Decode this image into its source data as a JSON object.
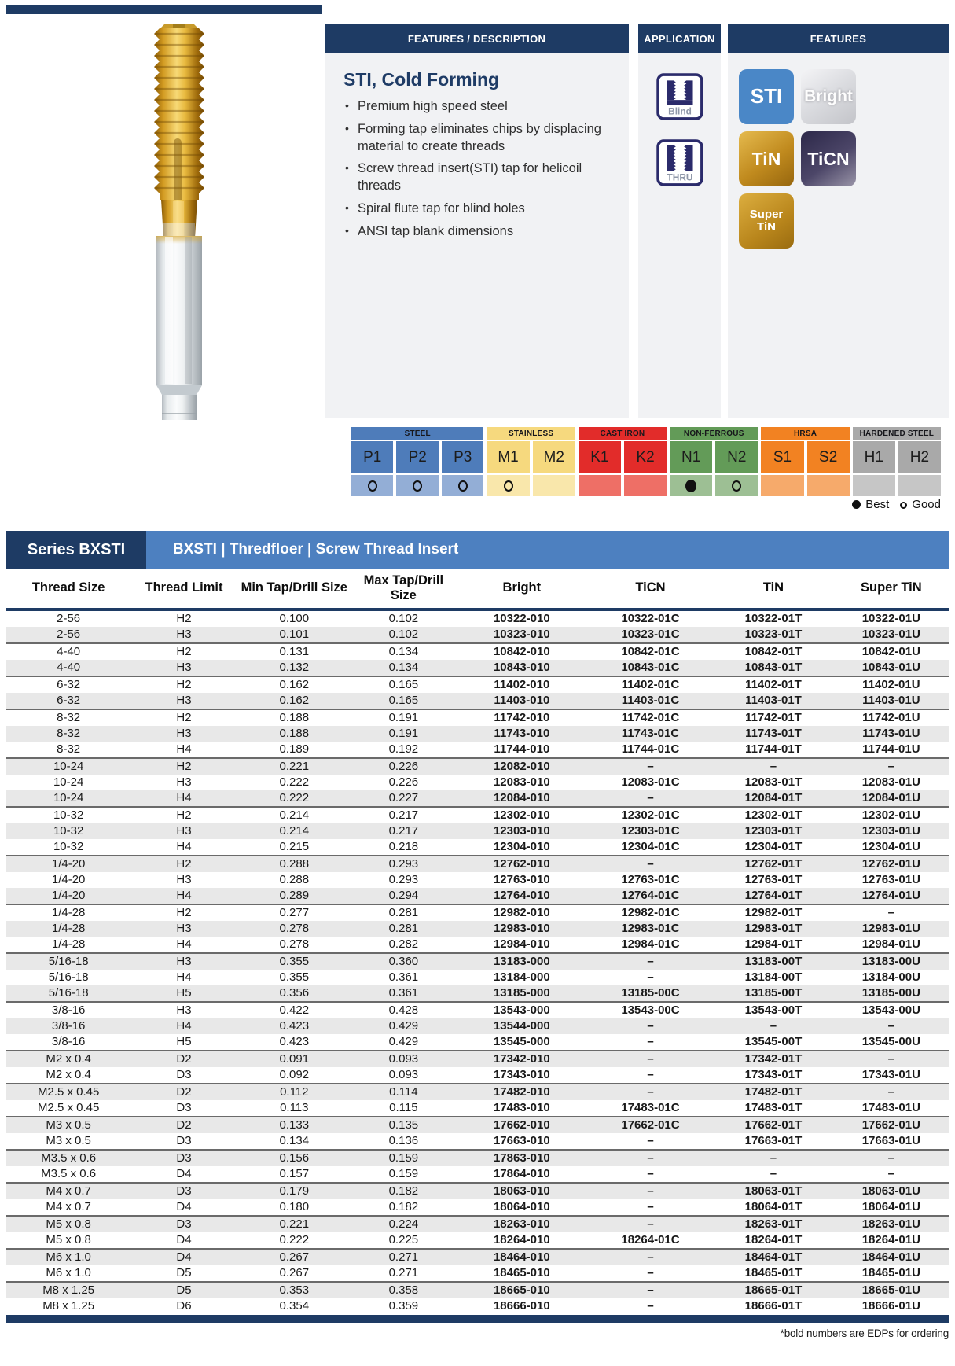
{
  "panels": {
    "description": {
      "header": "FEATURES / DESCRIPTION",
      "title": "STI, Cold Forming",
      "bullets": [
        "Premium high speed steel",
        "Forming tap eliminates chips by displacing material to create threads",
        "Screw thread insert(STI) tap for helicoil threads",
        "Spiral flute tap for blind holes",
        "ANSI tap blank dimensions"
      ]
    },
    "application": {
      "header": "APPLICATION",
      "items": [
        {
          "label": "Blind",
          "icon": "blind-hole-icon"
        },
        {
          "label": "THRU",
          "icon": "through-hole-icon"
        }
      ]
    },
    "features": {
      "header": "FEATURES",
      "badges": [
        {
          "label": "STI",
          "style": "sti",
          "color": "#4a87c7"
        },
        {
          "label": "Bright",
          "style": "bright",
          "color": "#d9dade"
        },
        {
          "label": "TiN",
          "style": "tin",
          "color": "#c08a1e"
        },
        {
          "label": "TiCN",
          "style": "ticn",
          "color": "#4c4668"
        },
        {
          "label": "Super TiN",
          "style": "supertin",
          "color": "#b9861c"
        }
      ]
    }
  },
  "materials": {
    "groups": [
      {
        "name": "STEEL",
        "color": "#4e7cba",
        "light": "#93aed6",
        "cells": [
          {
            "code": "P1",
            "rating": "good"
          },
          {
            "code": "P2",
            "rating": "good"
          },
          {
            "code": "P3",
            "rating": "good"
          }
        ]
      },
      {
        "name": "STAINLESS",
        "color": "#f6d97e",
        "light": "#f9e7ab",
        "cells": [
          {
            "code": "M1",
            "rating": "good"
          },
          {
            "code": "M2",
            "rating": "none"
          }
        ]
      },
      {
        "name": "CAST IRON",
        "color": "#e22c2a",
        "light": "#ee6f66",
        "cells": [
          {
            "code": "K1",
            "rating": "none"
          },
          {
            "code": "K2",
            "rating": "none"
          }
        ]
      },
      {
        "name": "NON-FERROUS",
        "color": "#639b58",
        "light": "#9dbf94",
        "cells": [
          {
            "code": "N1",
            "rating": "best"
          },
          {
            "code": "N2",
            "rating": "good"
          }
        ]
      },
      {
        "name": "HRSA",
        "color": "#f28222",
        "light": "#f6aa6b",
        "cells": [
          {
            "code": "S1",
            "rating": "none"
          },
          {
            "code": "S2",
            "rating": "none"
          }
        ]
      },
      {
        "name": "HARDENED STEEL",
        "color": "#a9a9a9",
        "light": "#c6c6c6",
        "cells": [
          {
            "code": "H1",
            "rating": "none"
          },
          {
            "code": "H2",
            "rating": "none"
          }
        ]
      }
    ],
    "legend": {
      "best": "Best",
      "good": "Good"
    }
  },
  "table": {
    "series_label": "Series BXSTI",
    "title": "BXSTI | Thredfloer | Screw Thread Insert",
    "columns": [
      "Thread Size",
      "Thread Limit",
      "Min Tap/Drill Size",
      "Max Tap/Drill Size",
      "Bright",
      "TiCN",
      "TiN",
      "Super TiN"
    ],
    "groups": [
      [
        [
          "2-56",
          "H2",
          "0.100",
          "0.102",
          "10322-010",
          "10322-01C",
          "10322-01T",
          "10322-01U"
        ],
        [
          "2-56",
          "H3",
          "0.101",
          "0.102",
          "10323-010",
          "10323-01C",
          "10323-01T",
          "10323-01U"
        ]
      ],
      [
        [
          "4-40",
          "H2",
          "0.131",
          "0.134",
          "10842-010",
          "10842-01C",
          "10842-01T",
          "10842-01U"
        ],
        [
          "4-40",
          "H3",
          "0.132",
          "0.134",
          "10843-010",
          "10843-01C",
          "10843-01T",
          "10843-01U"
        ]
      ],
      [
        [
          "6-32",
          "H2",
          "0.162",
          "0.165",
          "11402-010",
          "11402-01C",
          "11402-01T",
          "11402-01U"
        ],
        [
          "6-32",
          "H3",
          "0.162",
          "0.165",
          "11403-010",
          "11403-01C",
          "11403-01T",
          "11403-01U"
        ]
      ],
      [
        [
          "8-32",
          "H2",
          "0.188",
          "0.191",
          "11742-010",
          "11742-01C",
          "11742-01T",
          "11742-01U"
        ],
        [
          "8-32",
          "H3",
          "0.188",
          "0.191",
          "11743-010",
          "11743-01C",
          "11743-01T",
          "11743-01U"
        ],
        [
          "8-32",
          "H4",
          "0.189",
          "0.192",
          "11744-010",
          "11744-01C",
          "11744-01T",
          "11744-01U"
        ]
      ],
      [
        [
          "10-24",
          "H2",
          "0.221",
          "0.226",
          "12082-010",
          "–",
          "–",
          "–"
        ],
        [
          "10-24",
          "H3",
          "0.222",
          "0.226",
          "12083-010",
          "12083-01C",
          "12083-01T",
          "12083-01U"
        ],
        [
          "10-24",
          "H4",
          "0.222",
          "0.227",
          "12084-010",
          "–",
          "12084-01T",
          "12084-01U"
        ]
      ],
      [
        [
          "10-32",
          "H2",
          "0.214",
          "0.217",
          "12302-010",
          "12302-01C",
          "12302-01T",
          "12302-01U"
        ],
        [
          "10-32",
          "H3",
          "0.214",
          "0.217",
          "12303-010",
          "12303-01C",
          "12303-01T",
          "12303-01U"
        ],
        [
          "10-32",
          "H4",
          "0.215",
          "0.218",
          "12304-010",
          "12304-01C",
          "12304-01T",
          "12304-01U"
        ]
      ],
      [
        [
          "1/4-20",
          "H2",
          "0.288",
          "0.293",
          "12762-010",
          "–",
          "12762-01T",
          "12762-01U"
        ],
        [
          "1/4-20",
          "H3",
          "0.288",
          "0.293",
          "12763-010",
          "12763-01C",
          "12763-01T",
          "12763-01U"
        ],
        [
          "1/4-20",
          "H4",
          "0.289",
          "0.294",
          "12764-010",
          "12764-01C",
          "12764-01T",
          "12764-01U"
        ]
      ],
      [
        [
          "1/4-28",
          "H2",
          "0.277",
          "0.281",
          "12982-010",
          "12982-01C",
          "12982-01T",
          "–"
        ],
        [
          "1/4-28",
          "H3",
          "0.278",
          "0.281",
          "12983-010",
          "12983-01C",
          "12983-01T",
          "12983-01U"
        ],
        [
          "1/4-28",
          "H4",
          "0.278",
          "0.282",
          "12984-010",
          "12984-01C",
          "12984-01T",
          "12984-01U"
        ]
      ],
      [
        [
          "5/16-18",
          "H3",
          "0.355",
          "0.360",
          "13183-000",
          "–",
          "13183-00T",
          "13183-00U"
        ],
        [
          "5/16-18",
          "H4",
          "0.355",
          "0.361",
          "13184-000",
          "–",
          "13184-00T",
          "13184-00U"
        ],
        [
          "5/16-18",
          "H5",
          "0.356",
          "0.361",
          "13185-000",
          "13185-00C",
          "13185-00T",
          "13185-00U"
        ]
      ],
      [
        [
          "3/8-16",
          "H3",
          "0.422",
          "0.428",
          "13543-000",
          "13543-00C",
          "13543-00T",
          "13543-00U"
        ],
        [
          "3/8-16",
          "H4",
          "0.423",
          "0.429",
          "13544-000",
          "–",
          "–",
          "–"
        ],
        [
          "3/8-16",
          "H5",
          "0.423",
          "0.429",
          "13545-000",
          "–",
          "13545-00T",
          "13545-00U"
        ]
      ],
      [
        [
          "M2 x 0.4",
          "D2",
          "0.091",
          "0.093",
          "17342-010",
          "–",
          "17342-01T",
          "–"
        ],
        [
          "M2 x 0.4",
          "D3",
          "0.092",
          "0.093",
          "17343-010",
          "–",
          "17343-01T",
          "17343-01U"
        ]
      ],
      [
        [
          "M2.5 x 0.45",
          "D2",
          "0.112",
          "0.114",
          "17482-010",
          "–",
          "17482-01T",
          "–"
        ],
        [
          "M2.5 x 0.45",
          "D3",
          "0.113",
          "0.115",
          "17483-010",
          "17483-01C",
          "17483-01T",
          "17483-01U"
        ]
      ],
      [
        [
          "M3 x 0.5",
          "D2",
          "0.133",
          "0.135",
          "17662-010",
          "17662-01C",
          "17662-01T",
          "17662-01U"
        ],
        [
          "M3 x 0.5",
          "D3",
          "0.134",
          "0.136",
          "17663-010",
          "–",
          "17663-01T",
          "17663-01U"
        ]
      ],
      [
        [
          "M3.5 x 0.6",
          "D3",
          "0.156",
          "0.159",
          "17863-010",
          "–",
          "–",
          "–"
        ],
        [
          "M3.5 x 0.6",
          "D4",
          "0.157",
          "0.159",
          "17864-010",
          "–",
          "–",
          "–"
        ]
      ],
      [
        [
          "M4 x 0.7",
          "D3",
          "0.179",
          "0.182",
          "18063-010",
          "–",
          "18063-01T",
          "18063-01U"
        ],
        [
          "M4 x 0.7",
          "D4",
          "0.180",
          "0.182",
          "18064-010",
          "–",
          "18064-01T",
          "18064-01U"
        ]
      ],
      [
        [
          "M5 x 0.8",
          "D3",
          "0.221",
          "0.224",
          "18263-010",
          "–",
          "18263-01T",
          "18263-01U"
        ],
        [
          "M5 x 0.8",
          "D4",
          "0.222",
          "0.225",
          "18264-010",
          "18264-01C",
          "18264-01T",
          "18264-01U"
        ]
      ],
      [
        [
          "M6 x 1.0",
          "D4",
          "0.267",
          "0.271",
          "18464-010",
          "–",
          "18464-01T",
          "18464-01U"
        ],
        [
          "M6 x 1.0",
          "D5",
          "0.267",
          "0.271",
          "18465-010",
          "–",
          "18465-01T",
          "18465-01U"
        ]
      ],
      [
        [
          "M8 x 1.25",
          "D5",
          "0.353",
          "0.358",
          "18665-010",
          "–",
          "18665-01T",
          "18665-01U"
        ],
        [
          "M8 x 1.25",
          "D6",
          "0.354",
          "0.359",
          "18666-010",
          "–",
          "18666-01T",
          "18666-01U"
        ]
      ]
    ],
    "footnote": "*bold numbers are EDPs for ordering"
  }
}
